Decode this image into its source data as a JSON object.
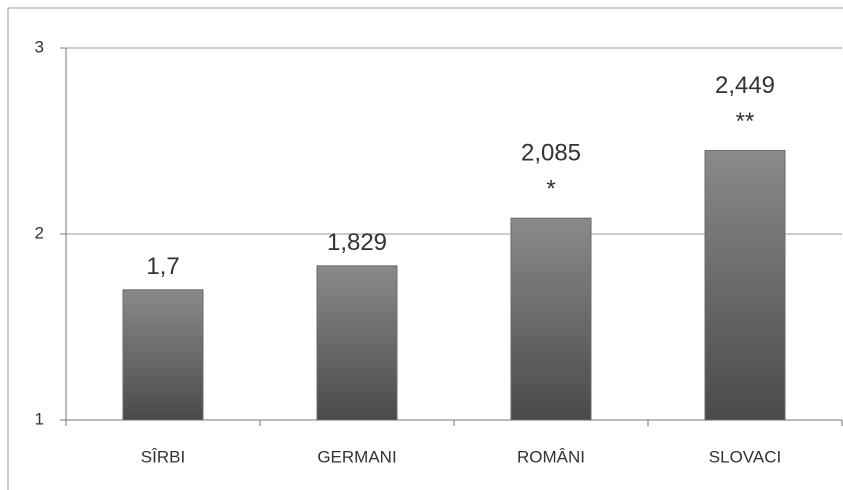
{
  "chart_data": {
    "type": "bar",
    "categories": [
      "SÎRBI",
      "GERMANI",
      "ROMÂNI",
      "SLOVACI"
    ],
    "values": [
      1.7,
      1.829,
      2.085,
      2.449
    ],
    "value_labels": [
      "1,7",
      "1,829",
      "2,085",
      "2,449"
    ],
    "significance": [
      null,
      null,
      "*",
      "**"
    ],
    "color": "#6b6b6b",
    "ylim": [
      1,
      3
    ],
    "yticks": [
      1,
      2,
      3
    ],
    "grid": true
  }
}
